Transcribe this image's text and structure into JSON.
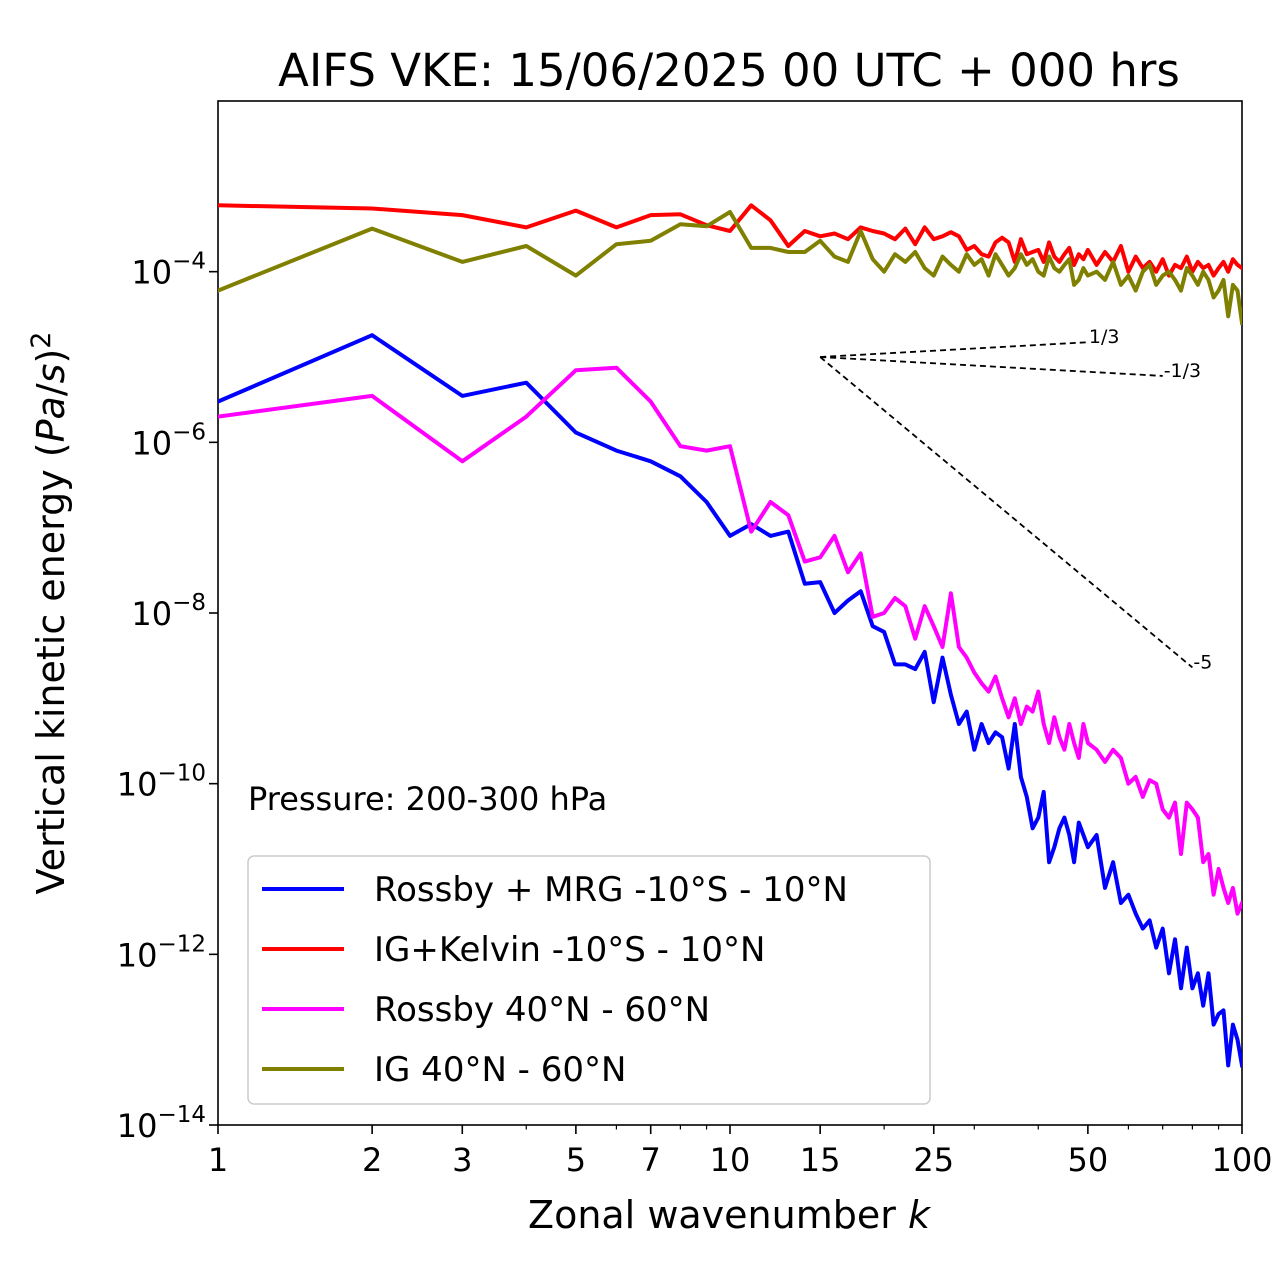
{
  "chart_data": {
    "type": "line",
    "title": "AIFS VKE: 15/06/2025 00 UTC + 000 hrs",
    "xlabel": "Zonal wavenumber k",
    "ylabel": "Vertical kinetic energy (Pa/s)^2",
    "xscale": "log",
    "yscale": "log",
    "xlim": [
      1,
      100
    ],
    "ylim": [
      1e-14,
      0.01
    ],
    "x_ticks": [
      1,
      2,
      3,
      5,
      7,
      10,
      15,
      25,
      50,
      100
    ],
    "x_tick_labels": [
      "1",
      "2",
      "3",
      "5",
      "7",
      "10",
      "15",
      "25",
      "50",
      "100"
    ],
    "y_ticks": [
      0.0001,
      1e-06,
      1e-08,
      1e-10,
      1e-12,
      1e-14
    ],
    "y_tick_labels": [
      {
        "base": "10",
        "exp": "−4"
      },
      {
        "base": "10",
        "exp": "−6"
      },
      {
        "base": "10",
        "exp": "−8"
      },
      {
        "base": "10",
        "exp": "−10"
      },
      {
        "base": "10",
        "exp": "−12"
      },
      {
        "base": "10",
        "exp": "−14"
      }
    ],
    "annotation": "Pressure: 200-300 hPa",
    "grid": false,
    "legend_position": "lower-left",
    "series": [
      {
        "name": "Rossby + MRG -10°S - 10°N",
        "color": "#0000ff",
        "x": [
          1,
          2,
          3,
          4,
          5,
          6,
          7,
          8,
          9,
          10,
          11,
          12,
          13,
          14,
          15,
          16,
          17,
          18,
          19,
          20,
          21,
          22,
          23,
          24,
          25,
          26,
          27,
          28,
          29,
          30,
          31,
          32,
          33,
          34,
          35,
          36,
          37,
          38,
          39,
          40,
          41,
          42,
          43,
          44,
          45,
          46,
          47,
          48,
          49,
          50,
          52,
          54,
          56,
          58,
          60,
          62,
          64,
          66,
          68,
          70,
          72,
          74,
          76,
          78,
          80,
          82,
          84,
          86,
          88,
          90,
          92,
          94,
          96,
          98,
          100
        ],
        "values": [
          3e-06,
          1.8e-05,
          3.5e-06,
          5e-06,
          1.3e-06,
          8e-07,
          6e-07,
          4e-07,
          2e-07,
          8e-08,
          1.1e-07,
          8e-08,
          9e-08,
          2.2e-08,
          2.3e-08,
          1e-08,
          1.4e-08,
          1.8e-08,
          7e-09,
          6e-09,
          2.5e-09,
          2.5e-09,
          2.2e-09,
          3.5e-09,
          9e-10,
          3e-09,
          1.1e-09,
          5e-10,
          7e-10,
          2.5e-10,
          5e-10,
          3e-10,
          4e-10,
          3.5e-10,
          1.5e-10,
          5e-10,
          1.2e-10,
          7e-11,
          3e-11,
          4e-11,
          8e-11,
          1.2e-11,
          1.8e-11,
          3e-11,
          4e-11,
          2.5e-11,
          1.2e-11,
          3.5e-11,
          2.5e-11,
          1.8e-11,
          2.5e-11,
          6e-12,
          1.2e-11,
          4e-12,
          5e-12,
          3e-12,
          2e-12,
          2.5e-12,
          1.2e-12,
          2e-12,
          6e-13,
          1.5e-12,
          4e-13,
          1.2e-12,
          4e-13,
          6e-13,
          2.5e-13,
          6e-13,
          1.5e-13,
          2e-13,
          2.2e-13,
          5e-14,
          1.5e-13,
          1e-13,
          5e-14
        ]
      },
      {
        "name": "IG+Kelvin -10°S - 10°N",
        "color": "#ff0000",
        "x": [
          1,
          2,
          3,
          4,
          5,
          6,
          7,
          8,
          9,
          10,
          11,
          12,
          13,
          14,
          15,
          16,
          17,
          18,
          19,
          20,
          21,
          22,
          23,
          24,
          25,
          26,
          27,
          28,
          29,
          30,
          31,
          32,
          33,
          34,
          35,
          36,
          37,
          38,
          39,
          40,
          41,
          42,
          43,
          44,
          45,
          46,
          47,
          48,
          49,
          50,
          52,
          54,
          56,
          58,
          60,
          62,
          64,
          66,
          68,
          70,
          72,
          74,
          76,
          78,
          80,
          82,
          84,
          86,
          88,
          90,
          92,
          94,
          96,
          98,
          100
        ],
        "values": [
          0.0006,
          0.00055,
          0.00046,
          0.00033,
          0.00052,
          0.00033,
          0.00046,
          0.00047,
          0.00035,
          0.0003,
          0.0006,
          0.0004,
          0.0002,
          0.0003,
          0.00026,
          0.00028,
          0.00024,
          0.00033,
          0.0003,
          0.00028,
          0.00024,
          0.00032,
          0.00021,
          0.00033,
          0.00024,
          0.00026,
          0.00029,
          0.00026,
          0.00018,
          0.0002,
          0.00016,
          0.00015,
          0.00022,
          0.00025,
          0.00022,
          0.00013,
          0.00024,
          0.00016,
          0.00017,
          0.00018,
          0.00013,
          0.00022,
          0.00015,
          0.00013,
          0.00016,
          0.00019,
          0.00012,
          0.00016,
          0.00014,
          0.00018,
          0.00012,
          0.00017,
          0.00013,
          0.0002,
          0.0001,
          0.00015,
          0.00011,
          0.00013,
          0.0001,
          0.00014,
          9e-05,
          0.00012,
          0.00011,
          0.00015,
          0.0001,
          0.00013,
          0.00011,
          0.00012,
          9e-05,
          0.00011,
          0.00013,
          0.0001,
          0.00014,
          0.00012,
          0.00011
        ]
      },
      {
        "name": "Rossby 40°N - 60°N",
        "color": "#ff00ff",
        "x": [
          1,
          2,
          3,
          4,
          5,
          6,
          7,
          8,
          9,
          10,
          11,
          12,
          13,
          14,
          15,
          16,
          17,
          18,
          19,
          20,
          21,
          22,
          23,
          24,
          25,
          26,
          27,
          28,
          29,
          30,
          31,
          32,
          33,
          34,
          35,
          36,
          37,
          38,
          39,
          40,
          41,
          42,
          43,
          44,
          45,
          46,
          47,
          48,
          49,
          50,
          52,
          54,
          56,
          58,
          60,
          62,
          64,
          66,
          68,
          70,
          72,
          74,
          76,
          78,
          80,
          82,
          84,
          86,
          88,
          90,
          92,
          94,
          96,
          98,
          100
        ],
        "values": [
          2e-06,
          3.5e-06,
          6e-07,
          2e-06,
          7e-06,
          7.5e-06,
          3e-06,
          9e-07,
          8e-07,
          9e-07,
          9e-08,
          2e-07,
          1.4e-07,
          4e-08,
          4.5e-08,
          8e-08,
          3e-08,
          5e-08,
          9e-09,
          1e-08,
          1.5e-08,
          1.2e-08,
          5e-09,
          1.2e-08,
          7e-09,
          4e-09,
          1.7e-08,
          4e-09,
          3e-09,
          2e-09,
          1.5e-09,
          1.2e-09,
          1.8e-09,
          1e-09,
          6e-10,
          1e-09,
          5e-10,
          8e-10,
          7e-10,
          1.2e-09,
          5e-10,
          3e-10,
          6e-10,
          3.5e-10,
          2.5e-10,
          5e-10,
          3e-10,
          2e-10,
          5e-10,
          3e-10,
          2.5e-10,
          1.8e-10,
          2.5e-10,
          2e-10,
          1e-10,
          1.2e-10,
          7e-11,
          1.1e-10,
          1e-10,
          5e-11,
          4e-11,
          6e-11,
          1.5e-11,
          6e-11,
          5e-11,
          4e-11,
          1.2e-11,
          1.5e-11,
          5e-12,
          1e-11,
          6e-12,
          4e-12,
          6e-12,
          3e-12,
          4e-12
        ]
      },
      {
        "name": "IG 40°N - 60°N",
        "color": "#808000",
        "x": [
          1,
          2,
          3,
          4,
          5,
          6,
          7,
          8,
          9,
          10,
          11,
          12,
          13,
          14,
          15,
          16,
          17,
          18,
          19,
          20,
          21,
          22,
          23,
          24,
          25,
          26,
          27,
          28,
          29,
          30,
          31,
          32,
          33,
          34,
          35,
          36,
          37,
          38,
          39,
          40,
          41,
          42,
          43,
          44,
          45,
          46,
          47,
          48,
          49,
          50,
          52,
          54,
          56,
          58,
          60,
          62,
          64,
          66,
          68,
          70,
          72,
          74,
          76,
          78,
          80,
          82,
          84,
          86,
          88,
          90,
          92,
          94,
          96,
          98,
          100
        ],
        "values": [
          6e-05,
          0.00032,
          0.00013,
          0.0002,
          9e-05,
          0.00021,
          0.00023,
          0.00036,
          0.00034,
          0.0005,
          0.00019,
          0.00019,
          0.00017,
          0.00017,
          0.00023,
          0.00015,
          0.00013,
          0.0003,
          0.00014,
          0.0001,
          0.00016,
          0.00013,
          0.00017,
          0.00011,
          9e-05,
          0.00015,
          0.00012,
          0.0001,
          0.00016,
          0.00012,
          0.00014,
          9e-05,
          0.00016,
          0.00012,
          9e-05,
          0.00011,
          0.00016,
          0.00012,
          0.00014,
          0.0001,
          9e-05,
          0.00015,
          0.00011,
          0.0001,
          0.00012,
          0.00014,
          7e-05,
          8e-05,
          0.00011,
          9e-05,
          0.0001,
          8e-05,
          0.00013,
          7e-05,
          9e-05,
          6e-05,
          0.0001,
          0.00012,
          7e-05,
          9e-05,
          0.0001,
          8e-05,
          6e-05,
          0.00011,
          9e-05,
          7e-05,
          0.0001,
          8e-05,
          5e-05,
          6e-05,
          8e-05,
          3e-05,
          7e-05,
          6e-05,
          2.5e-05
        ]
      }
    ],
    "reference_lines": [
      {
        "label": "1/3",
        "x": [
          15,
          50
        ],
        "y": [
          1e-05,
          1.49e-05
        ]
      },
      {
        "label": "-1/3",
        "x": [
          15,
          70
        ],
        "y": [
          1e-05,
          6e-06
        ]
      },
      {
        "label": "-5",
        "x": [
          15,
          80
        ],
        "y": [
          1e-05,
          2.3e-09
        ]
      }
    ]
  }
}
